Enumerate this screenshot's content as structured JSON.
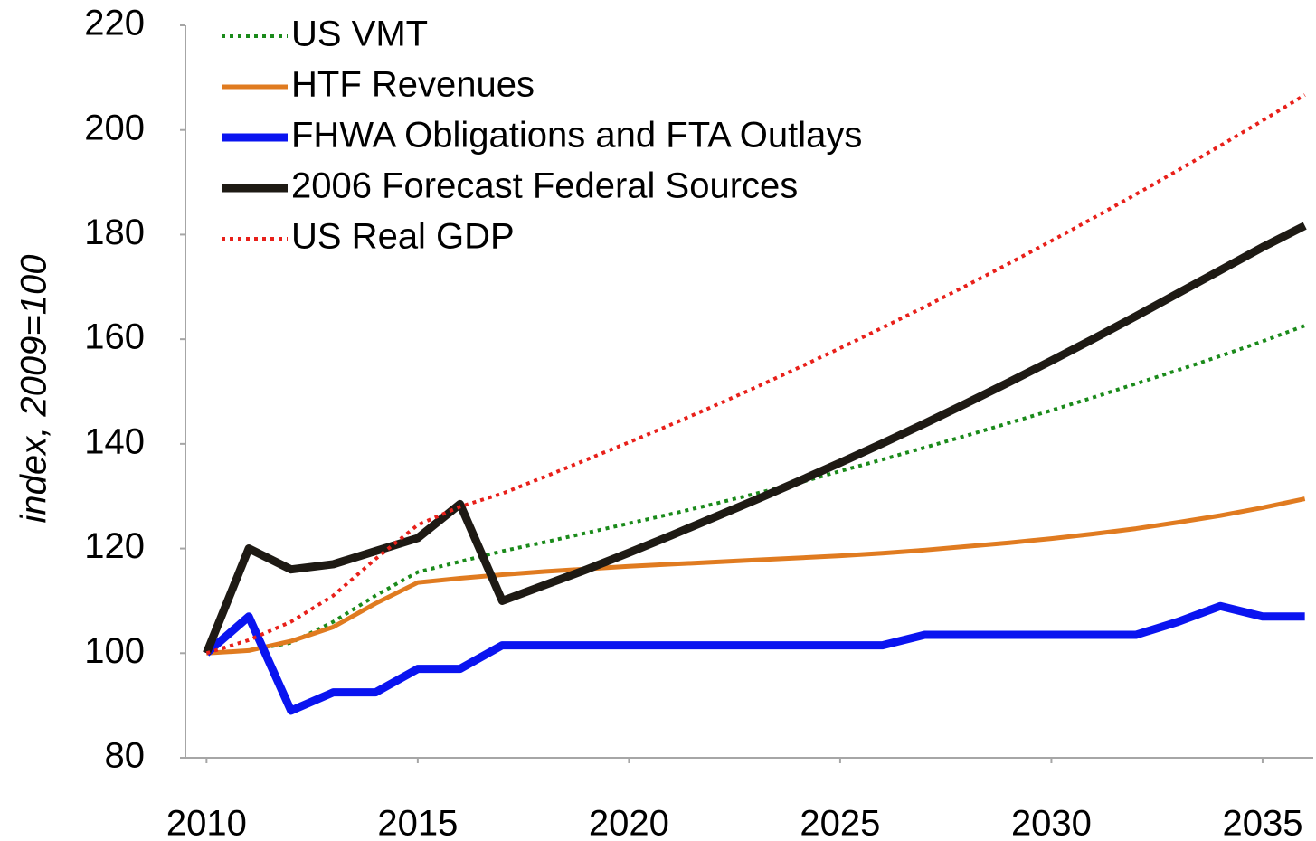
{
  "chart_data": {
    "type": "line",
    "y_label": "index, 2009=100",
    "x": [
      2010,
      2011,
      2012,
      2013,
      2014,
      2015,
      2016,
      2017,
      2018,
      2019,
      2020,
      2021,
      2022,
      2023,
      2024,
      2025,
      2026,
      2027,
      2028,
      2029,
      2030,
      2031,
      2032,
      2033,
      2034,
      2035,
      2036
    ],
    "series": [
      {
        "name": "US VMT",
        "color": "#1a8a1a",
        "style": "dotted",
        "width": 4,
        "values": [
          100,
          100.5,
          102,
          106,
          111,
          115.5,
          117.5,
          119.5,
          121.2,
          123,
          124.8,
          126.6,
          128.5,
          130.5,
          132.5,
          134.8,
          137,
          139.3,
          141.6,
          144,
          146.4,
          148.9,
          151.5,
          154.1,
          156.8,
          159.6,
          162.6
        ]
      },
      {
        "name": "HTF Revenues",
        "color": "#e07b20",
        "style": "solid",
        "width": 5,
        "values": [
          100,
          100.5,
          102.3,
          105,
          109.5,
          113.5,
          114.3,
          115,
          115.6,
          116.1,
          116.6,
          117,
          117.4,
          117.8,
          118.2,
          118.6,
          119.1,
          119.7,
          120.4,
          121.1,
          121.9,
          122.8,
          123.8,
          125,
          126.3,
          127.8,
          129.5
        ]
      },
      {
        "name": "FHWA Obligations and FTA Outlays",
        "color": "#0a14f0",
        "style": "solid",
        "width": 9,
        "values": [
          100,
          107,
          89,
          92.5,
          92.5,
          97,
          97,
          101.5,
          101.5,
          101.5,
          101.5,
          101.5,
          101.5,
          101.5,
          101.5,
          101.5,
          101.5,
          103.5,
          103.5,
          103.5,
          103.5,
          103.5,
          103.5,
          106,
          109,
          107,
          107
        ]
      },
      {
        "name": "2006 Forecast Federal Sources",
        "color": "#1e1a14",
        "style": "solid",
        "width": 9,
        "values": [
          100,
          120,
          116,
          117,
          119.5,
          122,
          128.5,
          110,
          113,
          116,
          119.2,
          122.5,
          125.9,
          129.3,
          132.8,
          136.4,
          140.1,
          143.9,
          147.8,
          151.8,
          155.9,
          160.1,
          164.4,
          168.8,
          173.2,
          177.6,
          181.7
        ]
      },
      {
        "name": "US Real GDP",
        "color": "#e8201a",
        "style": "dotted",
        "width": 4,
        "values": [
          100,
          102.5,
          106,
          111,
          118,
          124.5,
          128,
          130.5,
          133.7,
          137,
          140.3,
          143.7,
          147.2,
          150.8,
          154.5,
          158.3,
          162.2,
          166.2,
          170.3,
          174.5,
          178.8,
          183.2,
          187.7,
          192.3,
          197,
          201.8,
          206.7
        ]
      }
    ],
    "xlim": [
      2009.5,
      2036.2
    ],
    "xticks": [
      2010,
      2015,
      2020,
      2025,
      2030,
      2035
    ],
    "ylim": [
      80,
      220
    ],
    "yticks": [
      80,
      100,
      120,
      140,
      160,
      180,
      200,
      220
    ],
    "grid": false,
    "legend": "top-left"
  }
}
